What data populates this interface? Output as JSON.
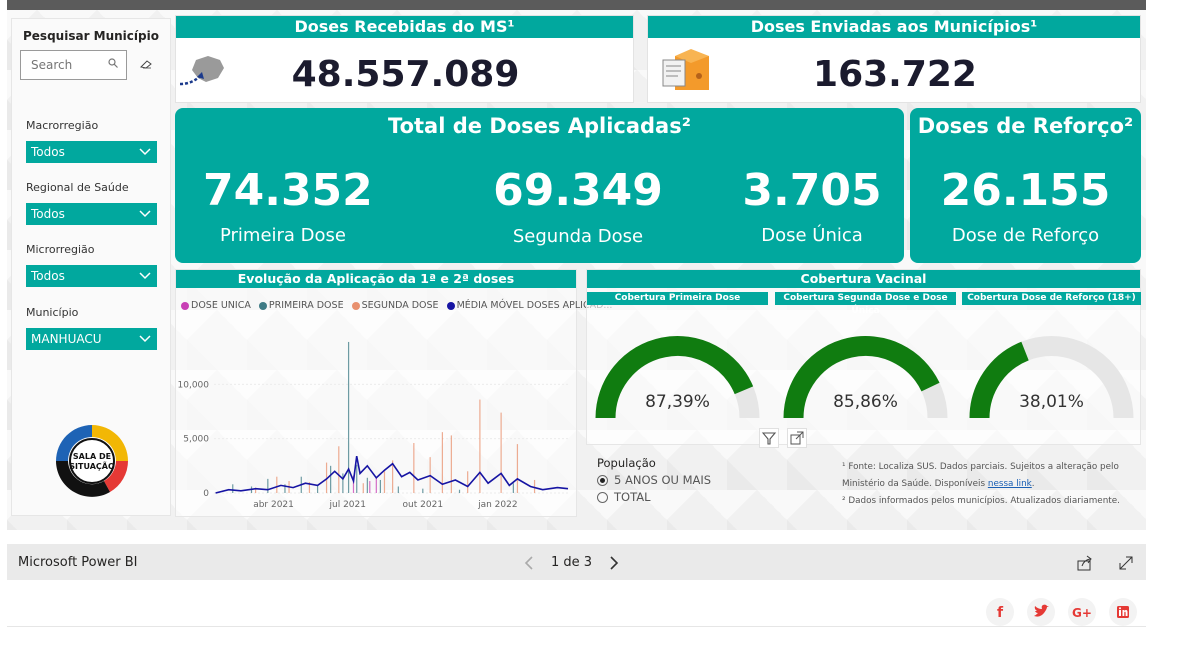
{
  "filters": {
    "title": "Pesquisar Município",
    "search_placeholder": "Search",
    "items": [
      {
        "label": "Macrorregião",
        "value": "Todos"
      },
      {
        "label": "Regional de Saúde",
        "value": "Todos"
      },
      {
        "label": "Microrregião",
        "value": "Todos"
      },
      {
        "label": "Município",
        "value": "MANHUACU"
      }
    ],
    "logo_text": "SALA DE SITUAÇÃO"
  },
  "kpis": {
    "recebidas": {
      "title": "Doses Recebidas do MS¹",
      "value": "48.557.089"
    },
    "enviadas": {
      "title": "Doses Enviadas aos Municípios¹",
      "value": "163.722"
    }
  },
  "aplicadas": {
    "title": "Total de Doses Aplicadas²",
    "items": [
      {
        "value": "74.352",
        "label": "Primeira Dose"
      },
      {
        "value": "69.349",
        "label": "Segunda Dose"
      },
      {
        "value": "3.705",
        "label": "Dose Única"
      }
    ]
  },
  "reforco": {
    "title": "Doses de Reforço²",
    "value": "26.155",
    "label": "Dose de Reforço"
  },
  "evolucao": {
    "title": "Evolução da Aplicação da 1ª e 2ª doses",
    "legend": [
      "DOSE UNICA",
      "PRIMEIRA DOSE",
      "SEGUNDA DOSE",
      "MÉDIA MÓVEL DOSES APLICAD..."
    ],
    "colors": {
      "dose_unica": "#c83fb5",
      "primeira": "#3e7b85",
      "segunda": "#e8906e",
      "media": "#1614a3"
    }
  },
  "chart_data": {
    "type": "bar",
    "title": "Evolução da Aplicação da 1ª e 2ª doses",
    "y_ticks": [
      "0",
      "5,000",
      "10,000"
    ],
    "x_ticks": [
      "abr 2021",
      "jul 2021",
      "out 2021",
      "jan 2022"
    ],
    "ylim": [
      0,
      15000
    ],
    "x_range": [
      "2021-01-18",
      "2022-03-28"
    ],
    "series": [
      {
        "name": "PRIMEIRA DOSE",
        "type": "bar",
        "points": [
          [
            "2021-02-10",
            800
          ],
          [
            "2021-03-05",
            600
          ],
          [
            "2021-03-25",
            1300
          ],
          [
            "2021-04-15",
            800
          ],
          [
            "2021-05-05",
            1500
          ],
          [
            "2021-05-25",
            700
          ],
          [
            "2021-06-10",
            2500
          ],
          [
            "2021-06-25",
            1800
          ],
          [
            "2021-07-02",
            13900
          ],
          [
            "2021-07-12",
            2600
          ],
          [
            "2021-07-25",
            1400
          ],
          [
            "2021-08-10",
            1200
          ],
          [
            "2021-09-01",
            600
          ],
          [
            "2021-10-01",
            400
          ],
          [
            "2021-11-15",
            300
          ],
          [
            "2022-01-20",
            900
          ]
        ]
      },
      {
        "name": "SEGUNDA DOSE",
        "type": "bar",
        "points": [
          [
            "2021-03-10",
            500
          ],
          [
            "2021-04-05",
            1500
          ],
          [
            "2021-04-20",
            1100
          ],
          [
            "2021-05-15",
            1000
          ],
          [
            "2021-06-05",
            2800
          ],
          [
            "2021-06-20",
            4300
          ],
          [
            "2021-07-20",
            900
          ],
          [
            "2021-08-15",
            2000
          ],
          [
            "2021-08-25",
            3000
          ],
          [
            "2021-09-20",
            4600
          ],
          [
            "2021-10-10",
            3300
          ],
          [
            "2021-10-25",
            5600
          ],
          [
            "2021-11-05",
            5300
          ],
          [
            "2021-11-25",
            2000
          ],
          [
            "2021-12-10",
            8600
          ],
          [
            "2022-01-05",
            7400
          ],
          [
            "2022-01-25",
            4500
          ],
          [
            "2022-02-15",
            1200
          ]
        ]
      },
      {
        "name": "DOSE UNICA",
        "type": "bar",
        "points": [
          [
            "2021-07-08",
            1600
          ],
          [
            "2021-07-28",
            1100
          ],
          [
            "2021-08-05",
            1400
          ]
        ]
      },
      {
        "name": "MÉDIA MÓVEL DOSES APLICAD...",
        "type": "line",
        "points": [
          [
            "2021-01-20",
            0
          ],
          [
            "2021-02-05",
            300
          ],
          [
            "2021-02-20",
            200
          ],
          [
            "2021-03-10",
            400
          ],
          [
            "2021-03-25",
            300
          ],
          [
            "2021-04-10",
            700
          ],
          [
            "2021-04-25",
            500
          ],
          [
            "2021-05-10",
            900
          ],
          [
            "2021-05-25",
            700
          ],
          [
            "2021-06-05",
            1300
          ],
          [
            "2021-06-15",
            2000
          ],
          [
            "2021-06-25",
            1300
          ],
          [
            "2021-07-02",
            2200
          ],
          [
            "2021-07-08",
            1100
          ],
          [
            "2021-07-12",
            3400
          ],
          [
            "2021-07-16",
            1800
          ],
          [
            "2021-07-25",
            2500
          ],
          [
            "2021-08-05",
            1400
          ],
          [
            "2021-08-15",
            2100
          ],
          [
            "2021-08-25",
            2700
          ],
          [
            "2021-09-05",
            1500
          ],
          [
            "2021-09-15",
            1900
          ],
          [
            "2021-09-25",
            1200
          ],
          [
            "2021-10-10",
            1600
          ],
          [
            "2021-10-25",
            800
          ],
          [
            "2021-11-10",
            1200
          ],
          [
            "2021-11-25",
            600
          ],
          [
            "2021-12-10",
            1900
          ],
          [
            "2021-12-20",
            900
          ],
          [
            "2022-01-05",
            1800
          ],
          [
            "2022-01-15",
            700
          ],
          [
            "2022-01-25",
            1300
          ],
          [
            "2022-02-10",
            600
          ],
          [
            "2022-02-25",
            300
          ],
          [
            "2022-03-15",
            500
          ],
          [
            "2022-03-28",
            400
          ]
        ]
      }
    ]
  },
  "cobertura": {
    "title": "Cobertura Vacinal",
    "gauges": [
      {
        "title": "Cobertura Primeira Dose",
        "pct": 87.39,
        "label": "87,39%"
      },
      {
        "title": "Cobertura Segunda Dose e Dose Única",
        "pct": 85.86,
        "label": "85,86%"
      },
      {
        "title": "Cobertura Dose de Reforço (18+)",
        "pct": 38.01,
        "label": "38,01%"
      }
    ],
    "gauge_fill": "#107c10",
    "gauge_track": "#e6e6e6"
  },
  "populacao": {
    "title": "População",
    "options": [
      "5 ANOS OU MAIS",
      "TOTAL"
    ],
    "selected": 0
  },
  "notes": {
    "n1": "¹ Fonte: Localiza SUS. Dados parciais. Sujeitos a alteração pelo Ministério da Saúde. Disponíveis ",
    "link": "nessa link",
    "n1_end": ".",
    "n2": "² Dados informados pelos municípios. Atualizados diariamente."
  },
  "footer": {
    "app": "Microsoft Power BI",
    "page": "1 de 3"
  },
  "accent": "#01a89e"
}
